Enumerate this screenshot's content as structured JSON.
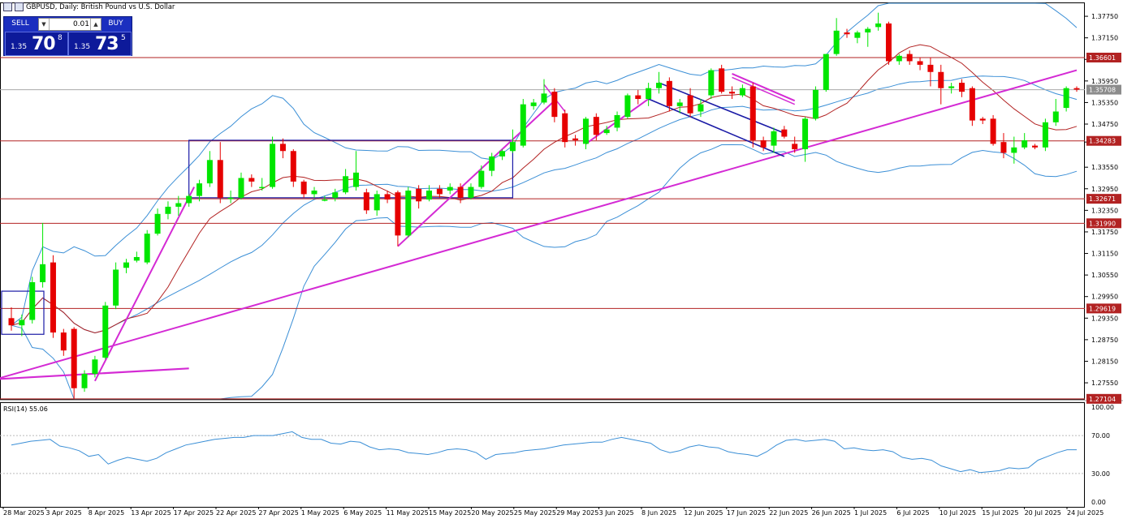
{
  "window": {
    "title": "GBPUSD, Daily:  British Pound vs U.S. Dollar"
  },
  "trade_panel": {
    "sell_label": "SELL",
    "buy_label": "BUY",
    "lot": "0.01",
    "sell_prefix": "1.35",
    "sell_big": "70",
    "sell_sup": "8",
    "buy_prefix": "1.35",
    "buy_big": "73",
    "buy_sup": "5"
  },
  "colors": {
    "bull": "#00e600",
    "bear": "#e60000",
    "bollinger": "#3b8fd6",
    "ma": "#b22222",
    "trendline": "#d42ad4",
    "channel": "#1a1aa6",
    "hline": "#b22222",
    "rsi": "#3b8fd6"
  },
  "chart_data": [
    {
      "type": "candlestick",
      "symbol": "GBPUSD",
      "timeframe": "Daily",
      "ylim": [
        1.271,
        1.38
      ],
      "y_ticks": [
        "1.37750",
        "1.37150",
        "1.36550",
        "1.35950",
        "1.35350",
        "1.34750",
        "1.34250",
        "1.33550",
        "1.32950",
        "1.32350",
        "1.31750",
        "1.31150",
        "1.30550",
        "1.29950",
        "1.29350",
        "1.28750",
        "1.28150",
        "1.27550"
      ],
      "x_labels": [
        "28 Mar 2025",
        "3 Apr 2025",
        "8 Apr 2025",
        "13 Apr 2025",
        "17 Apr 2025",
        "22 Apr 2025",
        "27 Apr 2025",
        "1 May 2025",
        "6 May 2025",
        "11 May 2025",
        "15 May 2025",
        "20 May 2025",
        "25 May 2025",
        "29 May 2025",
        "3 Jun 2025",
        "8 Jun 2025",
        "12 Jun 2025",
        "17 Jun 2025",
        "22 Jun 2025",
        "26 Jun 2025",
        "1 Jul 2025",
        "6 Jul 2025",
        "10 Jul 2025",
        "15 Jul 2025",
        "20 Jul 2025",
        "24 Jul 2025"
      ],
      "horizontal_levels": [
        {
          "label": "1.36601",
          "value": 1.36601
        },
        {
          "label": "1.34283",
          "value": 1.34283
        },
        {
          "label": "1.32671",
          "value": 1.32671
        },
        {
          "label": "1.31990",
          "value": 1.3199
        },
        {
          "label": "1.29619",
          "value": 1.29619
        },
        {
          "label": "1.27104",
          "value": 1.27104
        }
      ],
      "current_price": {
        "label": "1.35708",
        "value": 1.35708
      },
      "candles": [
        {
          "o": 1.2935,
          "h": 1.2965,
          "l": 1.29,
          "c": 1.2915
        },
        {
          "o": 1.2915,
          "h": 1.2945,
          "l": 1.2885,
          "c": 1.293
        },
        {
          "o": 1.293,
          "h": 1.305,
          "l": 1.292,
          "c": 1.3035
        },
        {
          "o": 1.3035,
          "h": 1.32,
          "l": 1.302,
          "c": 1.3085
        },
        {
          "o": 1.309,
          "h": 1.311,
          "l": 1.288,
          "c": 1.2895
        },
        {
          "o": 1.2895,
          "h": 1.2905,
          "l": 1.283,
          "c": 1.2845
        },
        {
          "o": 1.2905,
          "h": 1.291,
          "l": 1.271,
          "c": 1.274
        },
        {
          "o": 1.274,
          "h": 1.279,
          "l": 1.273,
          "c": 1.278
        },
        {
          "o": 1.278,
          "h": 1.283,
          "l": 1.277,
          "c": 1.282
        },
        {
          "o": 1.2825,
          "h": 1.298,
          "l": 1.282,
          "c": 1.297
        },
        {
          "o": 1.297,
          "h": 1.309,
          "l": 1.296,
          "c": 1.307
        },
        {
          "o": 1.3075,
          "h": 1.31,
          "l": 1.306,
          "c": 1.309
        },
        {
          "o": 1.3095,
          "h": 1.312,
          "l": 1.309,
          "c": 1.3105
        },
        {
          "o": 1.309,
          "h": 1.318,
          "l": 1.3085,
          "c": 1.317
        },
        {
          "o": 1.317,
          "h": 1.324,
          "l": 1.3165,
          "c": 1.3225
        },
        {
          "o": 1.3225,
          "h": 1.326,
          "l": 1.321,
          "c": 1.3245
        },
        {
          "o": 1.3245,
          "h": 1.3275,
          "l": 1.322,
          "c": 1.3255
        },
        {
          "o": 1.3255,
          "h": 1.328,
          "l": 1.3245,
          "c": 1.3275
        },
        {
          "o": 1.3275,
          "h": 1.332,
          "l": 1.326,
          "c": 1.331
        },
        {
          "o": 1.331,
          "h": 1.34,
          "l": 1.33,
          "c": 1.3375
        },
        {
          "o": 1.3375,
          "h": 1.3425,
          "l": 1.3255,
          "c": 1.327
        },
        {
          "o": 1.327,
          "h": 1.329,
          "l": 1.3255,
          "c": 1.327
        },
        {
          "o": 1.327,
          "h": 1.334,
          "l": 1.3265,
          "c": 1.3325
        },
        {
          "o": 1.3325,
          "h": 1.3335,
          "l": 1.33,
          "c": 1.3315
        },
        {
          "o": 1.33,
          "h": 1.3325,
          "l": 1.329,
          "c": 1.33
        },
        {
          "o": 1.33,
          "h": 1.344,
          "l": 1.3295,
          "c": 1.342
        },
        {
          "o": 1.342,
          "h": 1.3435,
          "l": 1.338,
          "c": 1.34
        },
        {
          "o": 1.34,
          "h": 1.3405,
          "l": 1.33,
          "c": 1.3315
        },
        {
          "o": 1.3315,
          "h": 1.332,
          "l": 1.327,
          "c": 1.328
        },
        {
          "o": 1.328,
          "h": 1.33,
          "l": 1.327,
          "c": 1.329
        },
        {
          "o": 1.3265,
          "h": 1.3275,
          "l": 1.326,
          "c": 1.3265
        },
        {
          "o": 1.327,
          "h": 1.3295,
          "l": 1.326,
          "c": 1.3285
        },
        {
          "o": 1.3285,
          "h": 1.335,
          "l": 1.328,
          "c": 1.333
        },
        {
          "o": 1.33,
          "h": 1.34,
          "l": 1.329,
          "c": 1.334
        },
        {
          "o": 1.3285,
          "h": 1.3295,
          "l": 1.3225,
          "c": 1.3235
        },
        {
          "o": 1.3235,
          "h": 1.329,
          "l": 1.322,
          "c": 1.328
        },
        {
          "o": 1.328,
          "h": 1.329,
          "l": 1.3255,
          "c": 1.3265
        },
        {
          "o": 1.3285,
          "h": 1.329,
          "l": 1.3135,
          "c": 1.3165
        },
        {
          "o": 1.3165,
          "h": 1.33,
          "l": 1.316,
          "c": 1.329
        },
        {
          "o": 1.3295,
          "h": 1.3305,
          "l": 1.324,
          "c": 1.326
        },
        {
          "o": 1.3265,
          "h": 1.3305,
          "l": 1.326,
          "c": 1.329
        },
        {
          "o": 1.3295,
          "h": 1.3305,
          "l": 1.327,
          "c": 1.328
        },
        {
          "o": 1.329,
          "h": 1.331,
          "l": 1.328,
          "c": 1.33
        },
        {
          "o": 1.33,
          "h": 1.331,
          "l": 1.3255,
          "c": 1.327
        },
        {
          "o": 1.327,
          "h": 1.331,
          "l": 1.3265,
          "c": 1.33
        },
        {
          "o": 1.33,
          "h": 1.336,
          "l": 1.3295,
          "c": 1.3345
        },
        {
          "o": 1.3345,
          "h": 1.3395,
          "l": 1.333,
          "c": 1.3385
        },
        {
          "o": 1.3385,
          "h": 1.3405,
          "l": 1.3375,
          "c": 1.34
        },
        {
          "o": 1.34,
          "h": 1.346,
          "l": 1.3395,
          "c": 1.3425
        },
        {
          "o": 1.3415,
          "h": 1.3545,
          "l": 1.341,
          "c": 1.353
        },
        {
          "o": 1.3525,
          "h": 1.3545,
          "l": 1.3515,
          "c": 1.3535
        },
        {
          "o": 1.3535,
          "h": 1.36,
          "l": 1.353,
          "c": 1.356
        },
        {
          "o": 1.3565,
          "h": 1.3575,
          "l": 1.348,
          "c": 1.3495
        },
        {
          "o": 1.3505,
          "h": 1.3515,
          "l": 1.341,
          "c": 1.3425
        },
        {
          "o": 1.3435,
          "h": 1.3445,
          "l": 1.3415,
          "c": 1.343
        },
        {
          "o": 1.342,
          "h": 1.3495,
          "l": 1.3405,
          "c": 1.349
        },
        {
          "o": 1.3495,
          "h": 1.3505,
          "l": 1.343,
          "c": 1.3445
        },
        {
          "o": 1.345,
          "h": 1.347,
          "l": 1.3445,
          "c": 1.346
        },
        {
          "o": 1.3465,
          "h": 1.351,
          "l": 1.3455,
          "c": 1.35
        },
        {
          "o": 1.3495,
          "h": 1.356,
          "l": 1.349,
          "c": 1.3555
        },
        {
          "o": 1.3555,
          "h": 1.357,
          "l": 1.353,
          "c": 1.3545
        },
        {
          "o": 1.3545,
          "h": 1.359,
          "l": 1.3525,
          "c": 1.3575
        },
        {
          "o": 1.3575,
          "h": 1.362,
          "l": 1.356,
          "c": 1.359
        },
        {
          "o": 1.3595,
          "h": 1.3605,
          "l": 1.351,
          "c": 1.3525
        },
        {
          "o": 1.3525,
          "h": 1.3545,
          "l": 1.3505,
          "c": 1.3535
        },
        {
          "o": 1.3555,
          "h": 1.3575,
          "l": 1.3495,
          "c": 1.3505
        },
        {
          "o": 1.351,
          "h": 1.3545,
          "l": 1.3495,
          "c": 1.353
        },
        {
          "o": 1.3555,
          "h": 1.363,
          "l": 1.3545,
          "c": 1.3625
        },
        {
          "o": 1.363,
          "h": 1.364,
          "l": 1.356,
          "c": 1.3565
        },
        {
          "o": 1.3565,
          "h": 1.358,
          "l": 1.3545,
          "c": 1.356
        },
        {
          "o": 1.3555,
          "h": 1.3585,
          "l": 1.355,
          "c": 1.3575
        },
        {
          "o": 1.358,
          "h": 1.359,
          "l": 1.341,
          "c": 1.343
        },
        {
          "o": 1.343,
          "h": 1.344,
          "l": 1.34,
          "c": 1.341
        },
        {
          "o": 1.3415,
          "h": 1.3465,
          "l": 1.3395,
          "c": 1.3455
        },
        {
          "o": 1.346,
          "h": 1.347,
          "l": 1.3435,
          "c": 1.344
        },
        {
          "o": 1.342,
          "h": 1.344,
          "l": 1.3395,
          "c": 1.3405
        },
        {
          "o": 1.3405,
          "h": 1.3495,
          "l": 1.337,
          "c": 1.349
        },
        {
          "o": 1.349,
          "h": 1.358,
          "l": 1.3485,
          "c": 1.357
        },
        {
          "o": 1.357,
          "h": 1.367,
          "l": 1.3565,
          "c": 1.367
        },
        {
          "o": 1.367,
          "h": 1.377,
          "l": 1.3665,
          "c": 1.3735
        },
        {
          "o": 1.373,
          "h": 1.374,
          "l": 1.3715,
          "c": 1.3725
        },
        {
          "o": 1.3715,
          "h": 1.3735,
          "l": 1.37,
          "c": 1.373
        },
        {
          "o": 1.373,
          "h": 1.3745,
          "l": 1.369,
          "c": 1.374
        },
        {
          "o": 1.3745,
          "h": 1.3785,
          "l": 1.3735,
          "c": 1.3755
        },
        {
          "o": 1.3755,
          "h": 1.376,
          "l": 1.364,
          "c": 1.365
        },
        {
          "o": 1.365,
          "h": 1.367,
          "l": 1.364,
          "c": 1.3665
        },
        {
          "o": 1.367,
          "h": 1.368,
          "l": 1.364,
          "c": 1.365
        },
        {
          "o": 1.365,
          "h": 1.366,
          "l": 1.3625,
          "c": 1.364
        },
        {
          "o": 1.364,
          "h": 1.366,
          "l": 1.358,
          "c": 1.362
        },
        {
          "o": 1.362,
          "h": 1.364,
          "l": 1.353,
          "c": 1.3575
        },
        {
          "o": 1.3575,
          "h": 1.359,
          "l": 1.356,
          "c": 1.358
        },
        {
          "o": 1.359,
          "h": 1.36,
          "l": 1.355,
          "c": 1.3565
        },
        {
          "o": 1.3575,
          "h": 1.358,
          "l": 1.347,
          "c": 1.3485
        },
        {
          "o": 1.349,
          "h": 1.3495,
          "l": 1.3475,
          "c": 1.3485
        },
        {
          "o": 1.349,
          "h": 1.35,
          "l": 1.3415,
          "c": 1.342
        },
        {
          "o": 1.3425,
          "h": 1.345,
          "l": 1.338,
          "c": 1.3395
        },
        {
          "o": 1.3395,
          "h": 1.344,
          "l": 1.3365,
          "c": 1.341
        },
        {
          "o": 1.341,
          "h": 1.345,
          "l": 1.3405,
          "c": 1.343
        },
        {
          "o": 1.3415,
          "h": 1.342,
          "l": 1.3405,
          "c": 1.341
        },
        {
          "o": 1.341,
          "h": 1.349,
          "l": 1.34,
          "c": 1.348
        },
        {
          "o": 1.348,
          "h": 1.3545,
          "l": 1.347,
          "c": 1.351
        },
        {
          "o": 1.352,
          "h": 1.358,
          "l": 1.351,
          "c": 1.3575
        },
        {
          "o": 1.3575,
          "h": 1.358,
          "l": 1.3565,
          "c": 1.3571
        }
      ]
    },
    {
      "type": "line",
      "title": "RSI(14) 55.06",
      "ylim": [
        0,
        100
      ],
      "y_ticks": [
        "100.00",
        "70.00",
        "30.00",
        "0.00"
      ],
      "levels": [
        70,
        30
      ],
      "values": [
        60,
        62,
        64,
        65,
        66,
        59,
        57,
        54,
        48,
        50,
        40,
        44,
        47,
        45,
        43,
        46,
        52,
        56,
        60,
        62,
        64,
        66,
        67,
        68,
        68,
        70,
        70,
        70,
        72,
        74,
        68,
        66,
        66,
        62,
        61,
        64,
        63,
        58,
        55,
        56,
        55,
        52,
        51,
        50,
        52,
        55,
        56,
        55,
        52,
        45,
        50,
        51,
        52,
        54,
        55,
        56,
        58,
        60,
        61,
        62,
        63,
        63,
        66,
        68,
        66,
        64,
        62,
        55,
        52,
        54,
        58,
        60,
        58,
        57,
        53,
        51,
        50,
        48,
        53,
        60,
        65,
        66,
        64,
        65,
        66,
        64,
        56,
        57,
        55,
        54,
        55,
        53,
        47,
        45,
        46,
        44,
        38,
        35,
        32,
        34,
        31,
        32,
        33,
        36,
        35,
        36,
        44,
        48,
        52,
        55,
        55
      ]
    }
  ]
}
